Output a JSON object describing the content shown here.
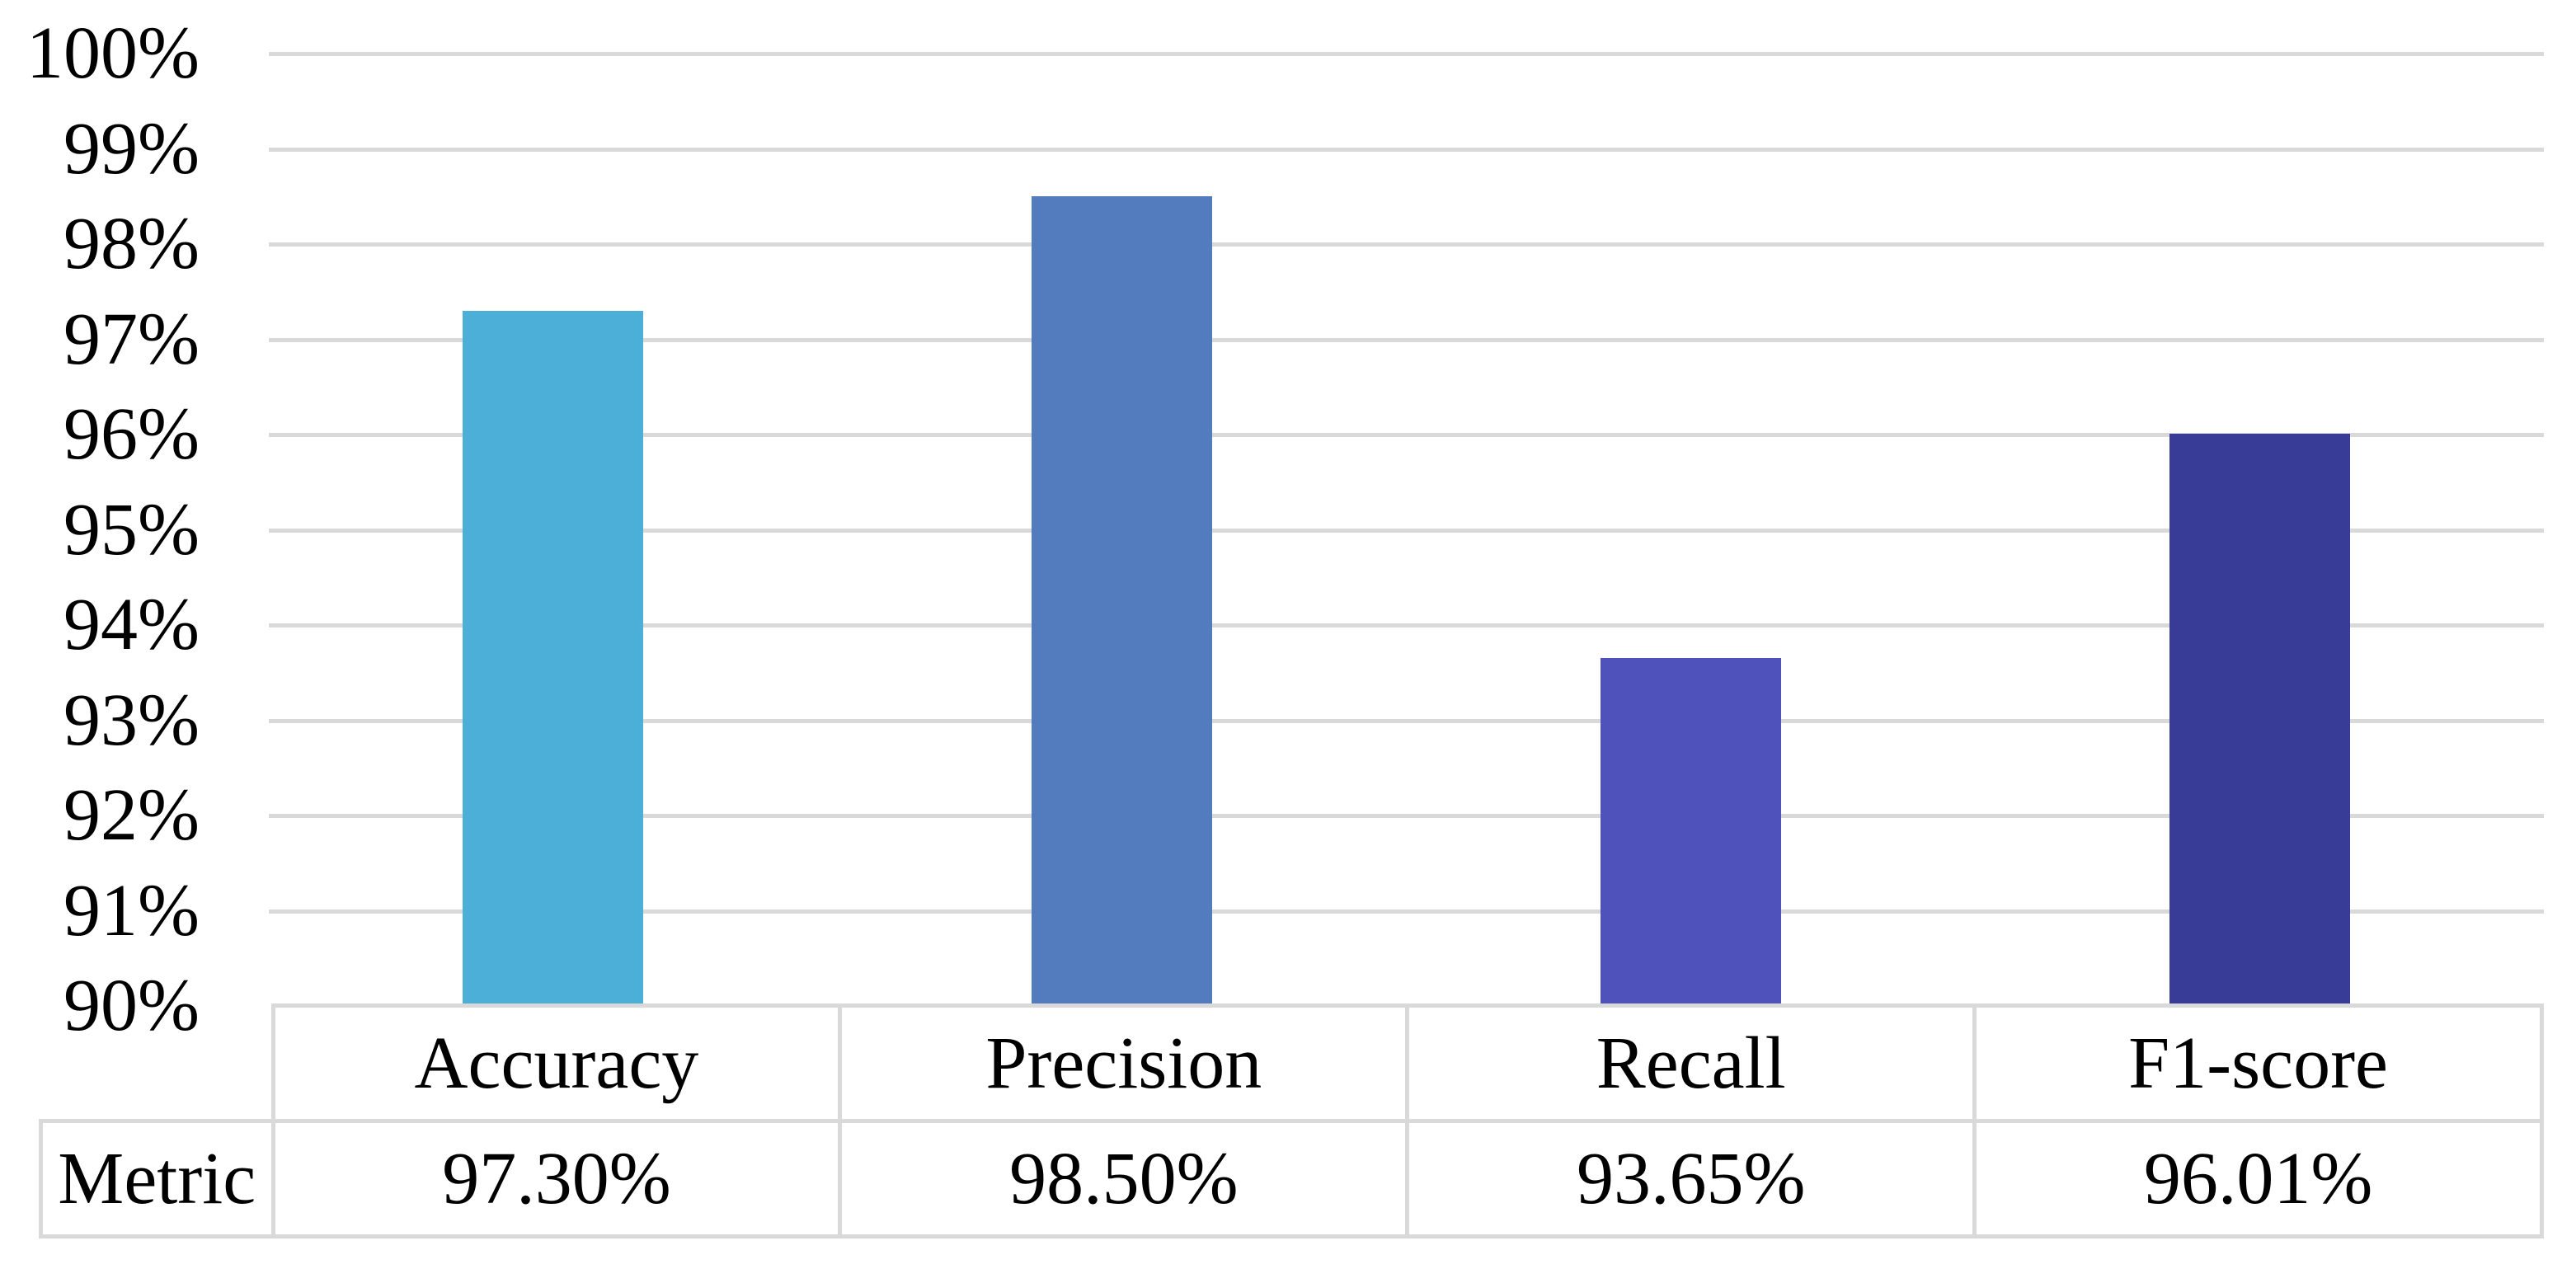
{
  "chart_data": {
    "type": "bar",
    "categories": [
      "Accuracy",
      "Precision",
      "Recall",
      "F1-score"
    ],
    "values": [
      97.3,
      98.5,
      93.65,
      96.01
    ],
    "value_labels": [
      "97.30%",
      "98.50%",
      "93.65%",
      "96.01%"
    ],
    "series_name": "Metric",
    "colors": [
      "#4bafd8",
      "#527cbe",
      "#5052bc",
      "#393c96"
    ],
    "title": "",
    "xlabel": "",
    "ylabel": "",
    "ylim": [
      90,
      100
    ],
    "ytick_step": 1,
    "yticks": [
      "100%",
      "99%",
      "98%",
      "97%",
      "96%",
      "95%",
      "94%",
      "93%",
      "92%",
      "91%",
      "90%"
    ],
    "grid": "horizontal",
    "gridline_color": "#d9d9d9",
    "legend_position": "none"
  },
  "table": {
    "row_label": "Metric",
    "columns": [
      "Accuracy",
      "Precision",
      "Recall",
      "F1-score"
    ],
    "values": [
      "97.30%",
      "98.50%",
      "93.65%",
      "96.01%"
    ],
    "border_color": "#d9d9d9"
  }
}
